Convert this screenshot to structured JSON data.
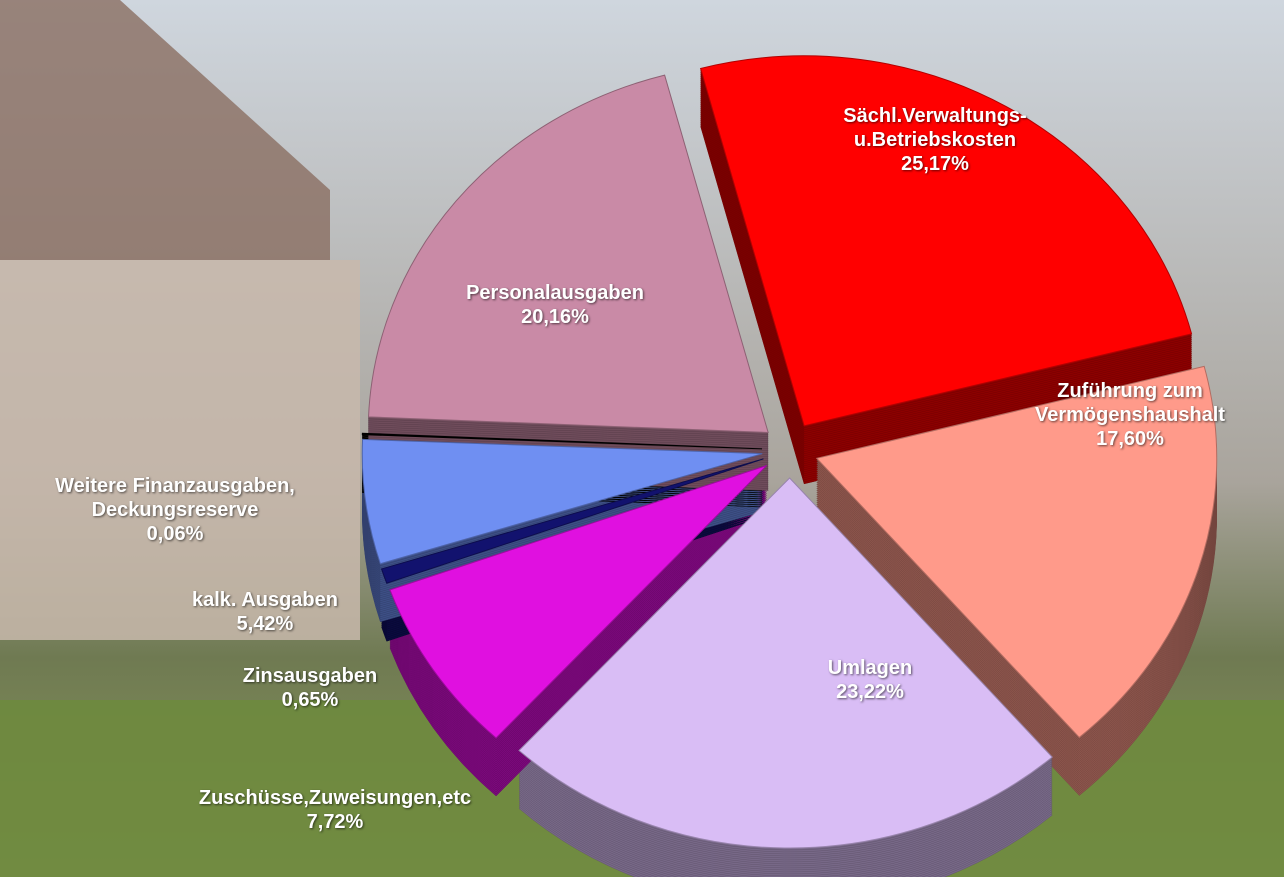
{
  "chart_data": {
    "type": "pie",
    "categories": [
      "Sächl.Verwaltungs-\nu.Betriebskosten",
      "Zuführung zum\nVermögenshaushalt",
      "Umlagen",
      "Zuschüsse,Zuweisungen,etc",
      "Zinsausgaben",
      "kalk. Ausgaben",
      "Weitere Finanzausgaben,\nDeckungsreserve",
      "Personalausgaben"
    ],
    "values": [
      25.17,
      17.6,
      23.22,
      7.72,
      0.65,
      5.42,
      0.06,
      20.16
    ],
    "value_labels": [
      "25,17%",
      "17,60%",
      "23,22%",
      "7,72%",
      "0,65%",
      "5,42%",
      "0,06%",
      "20,16%"
    ],
    "colors": [
      "#ff0000",
      "#ff9a8a",
      "#d9bdf5",
      "#e010e0",
      "#12126e",
      "#6f8ff2",
      "#000000",
      "#c98aa6"
    ]
  }
}
